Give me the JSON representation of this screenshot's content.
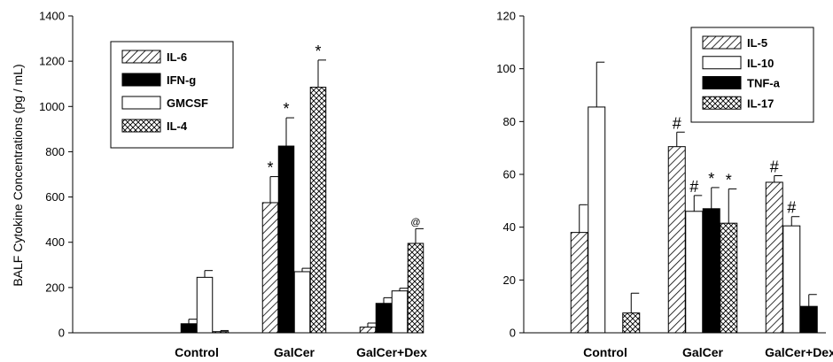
{
  "chart_data": [
    {
      "type": "bar",
      "title": "",
      "xlabel": "",
      "ylabel": "BALF Cytokine Concentrations (pg / mL)",
      "categories": [
        "Control",
        "GalCer",
        "GalCer+Dex"
      ],
      "ylim": [
        0,
        1400
      ],
      "yticks": [
        0,
        200,
        400,
        600,
        800,
        1000,
        1200,
        1400
      ],
      "legend_position": "top-left",
      "grid": false,
      "series": [
        {
          "name": "IL-6",
          "pattern": "diagonal",
          "values": [
            0,
            575,
            25
          ],
          "errors": [
            0,
            115,
            18
          ],
          "annotations": [
            "",
            "*",
            ""
          ]
        },
        {
          "name": "IFN-g",
          "pattern": "solid",
          "values": [
            40,
            825,
            130
          ],
          "errors": [
            20,
            125,
            25
          ],
          "annotations": [
            "",
            "*",
            ""
          ]
        },
        {
          "name": "GMCSF",
          "pattern": "empty",
          "values": [
            245,
            270,
            185
          ],
          "errors": [
            30,
            15,
            12
          ],
          "annotations": [
            "",
            "",
            ""
          ]
        },
        {
          "name": "IL-4",
          "pattern": "crosshatch",
          "values": [
            5,
            1085,
            395
          ],
          "errors": [
            5,
            120,
            65
          ],
          "annotations": [
            "",
            "*",
            "@"
          ]
        }
      ]
    },
    {
      "type": "bar",
      "title": "",
      "xlabel": "",
      "ylabel": "",
      "categories": [
        "Control",
        "GalCer",
        "GalCer+Dex"
      ],
      "ylim": [
        0,
        120
      ],
      "yticks": [
        0,
        20,
        40,
        60,
        80,
        100,
        120
      ],
      "legend_position": "top-right",
      "grid": false,
      "series": [
        {
          "name": "IL-5",
          "pattern": "diagonal",
          "values": [
            38,
            70.5,
            57
          ],
          "errors": [
            10.5,
            5.5,
            2.5
          ],
          "annotations": [
            "",
            "#",
            "#"
          ]
        },
        {
          "name": "IL-10",
          "pattern": "empty",
          "values": [
            85.5,
            46,
            40.5
          ],
          "errors": [
            17,
            6,
            3.5
          ],
          "annotations": [
            "",
            "#",
            "#"
          ]
        },
        {
          "name": "TNF-a",
          "pattern": "solid",
          "values": [
            0,
            47,
            10
          ],
          "errors": [
            0,
            8,
            4.5
          ],
          "annotations": [
            "",
            "*",
            ""
          ]
        },
        {
          "name": "IL-17",
          "pattern": "crosshatch",
          "values": [
            7.5,
            41.5,
            0
          ],
          "errors": [
            7.5,
            13,
            0
          ],
          "annotations": [
            "",
            "*",
            ""
          ]
        }
      ]
    }
  ]
}
